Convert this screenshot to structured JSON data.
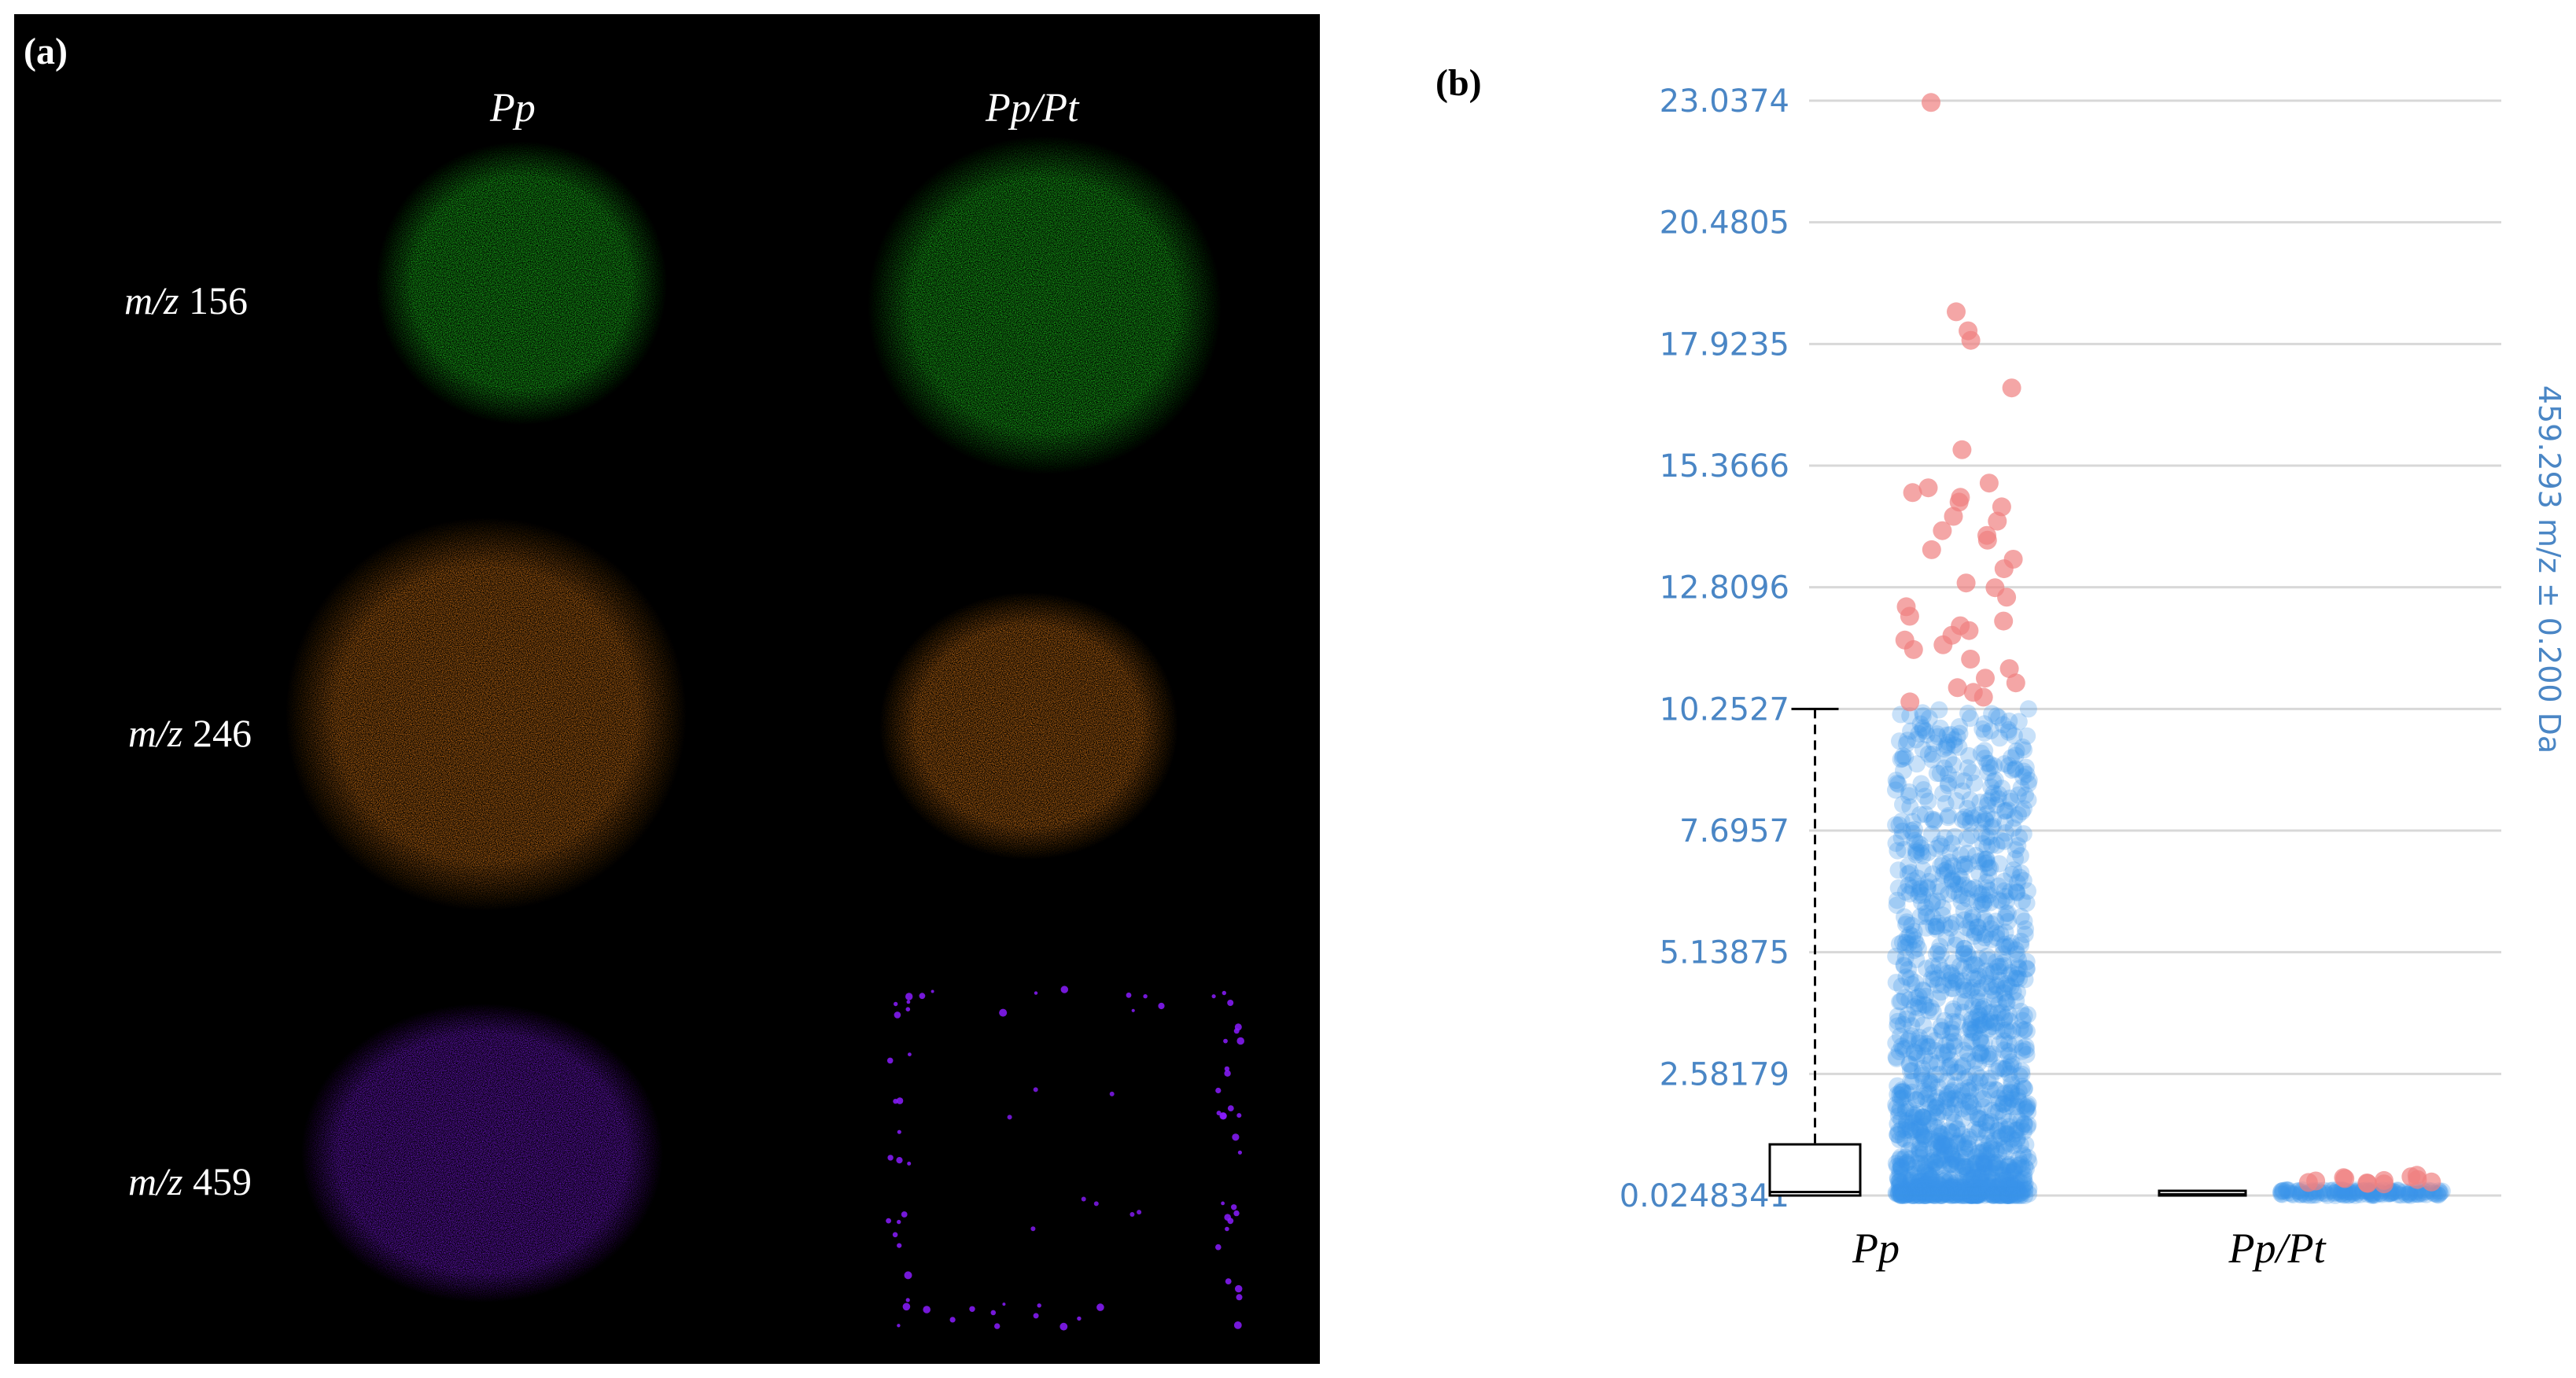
{
  "panel_a": {
    "label": "(a)",
    "columns": [
      "Pp",
      "Pp/Pt"
    ],
    "rows": [
      {
        "prefix": "m/z",
        "mass": "156",
        "color": "#22ee22"
      },
      {
        "prefix": "m/z",
        "mass": "246",
        "color": "#ff8c1a"
      },
      {
        "prefix": "m/z",
        "mass": "459",
        "color": "#8a1cff"
      }
    ]
  },
  "panel_b": {
    "label": "(b)"
  },
  "chart_data": {
    "type": "scatter",
    "subtype": "box-and-jitter",
    "title": "",
    "xlabel": "",
    "ylabel": "459.293 m/z ± 0.200 Da",
    "categories": [
      "Pp",
      "Pp/Pt"
    ],
    "y_ticks": [
      "23.0374",
      "20.4805",
      "17.9235",
      "15.3666",
      "12.8096",
      "10.2527",
      "7.6957",
      "5.13875",
      "2.58179",
      "0.0248341"
    ],
    "ylim": [
      0.0248341,
      23.0374
    ],
    "grid": true,
    "colors": {
      "inlier": "#3b95e8",
      "outlier": "#f08080",
      "axis_text": "#4a86c5",
      "grid": "#d8d8d8"
    },
    "box": [
      {
        "category": "Pp",
        "min": 0.0248341,
        "q1": 0.05,
        "median": 0.1,
        "q3": 1.1,
        "whisker_high": 10.2527
      },
      {
        "category": "Pp/Pt",
        "min": 0.0248341,
        "q1": 0.03,
        "median": 0.05,
        "q3": 0.12,
        "whisker_high": 0.12
      }
    ],
    "outliers": [
      {
        "category": "Pp",
        "values": [
          23.0,
          18.6,
          18.2,
          18.0,
          17.0,
          15.7,
          15.0,
          14.9,
          14.8,
          14.7,
          14.6,
          14.5,
          14.3,
          14.2,
          14.0,
          13.9,
          13.8,
          13.6,
          13.4,
          13.2,
          12.9,
          12.8,
          12.6,
          12.4,
          12.2,
          12.1,
          12.0,
          11.9,
          11.8,
          11.7,
          11.6,
          11.5,
          11.3,
          11.1,
          10.9,
          10.8,
          10.7,
          10.6,
          10.5,
          10.4
        ]
      },
      {
        "category": "Pp/Pt",
        "values": [
          0.45,
          0.42,
          0.4,
          0.38,
          0.36,
          0.34,
          0.33,
          0.31,
          0.3,
          0.29,
          0.28,
          0.27
        ]
      }
    ]
  }
}
